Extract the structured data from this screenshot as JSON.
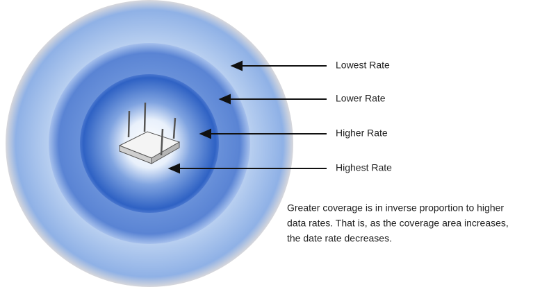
{
  "labels": [
    "Lowest Rate",
    "Lower Rate",
    "Higher Rate",
    "Highest Rate"
  ],
  "note": {
    "lines": [
      "Greater coverage is in inverse proportion to higher",
      "data rates. That is, as the coverage area increases,",
      "the date rate decreases."
    ]
  }
}
